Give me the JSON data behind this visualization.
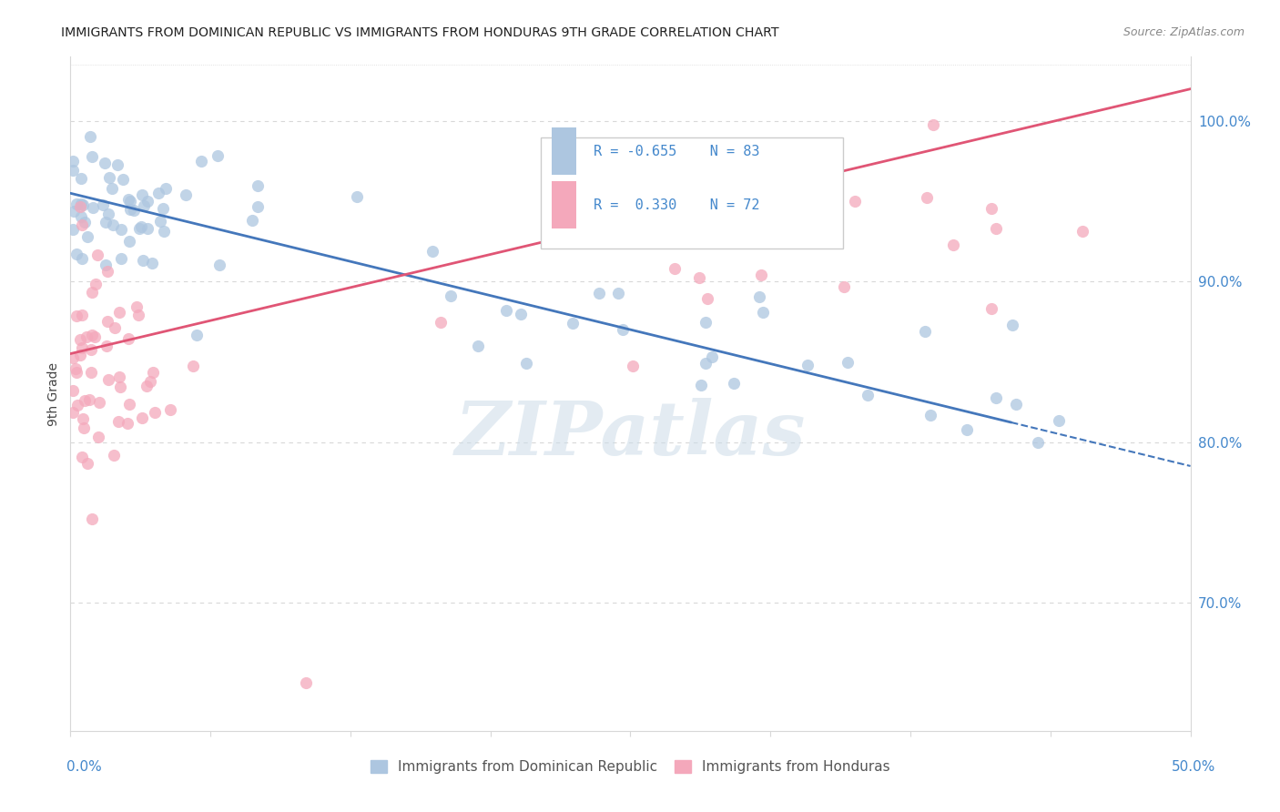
{
  "title": "IMMIGRANTS FROM DOMINICAN REPUBLIC VS IMMIGRANTS FROM HONDURAS 9TH GRADE CORRELATION CHART",
  "source": "Source: ZipAtlas.com",
  "ylabel": "9th Grade",
  "blue_label": "Immigrants from Dominican Republic",
  "pink_label": "Immigrants from Honduras",
  "xlim": [
    0.0,
    50.0
  ],
  "ylim": [
    62.0,
    106.0
  ],
  "plot_ylim_top": 104.0,
  "plot_ylim_bottom": 62.0,
  "right_yticks": [
    70.0,
    80.0,
    90.0,
    100.0
  ],
  "right_ytick_labels": [
    "70.0%",
    "80.0%",
    "90.0%",
    "100.0%"
  ],
  "blue_color": "#adc6e0",
  "pink_color": "#f4a8bb",
  "line_blue": "#4477bb",
  "line_pink": "#e05575",
  "legend_R_blue": "-0.655",
  "legend_N_blue": "83",
  "legend_R_pink": "0.330",
  "legend_N_pink": "72",
  "watermark": "ZIPatlas",
  "background_color": "#ffffff",
  "grid_color": "#d8d8d8",
  "title_color": "#222222",
  "source_color": "#888888",
  "axis_color": "#4488cc",
  "ylabel_color": "#444444"
}
